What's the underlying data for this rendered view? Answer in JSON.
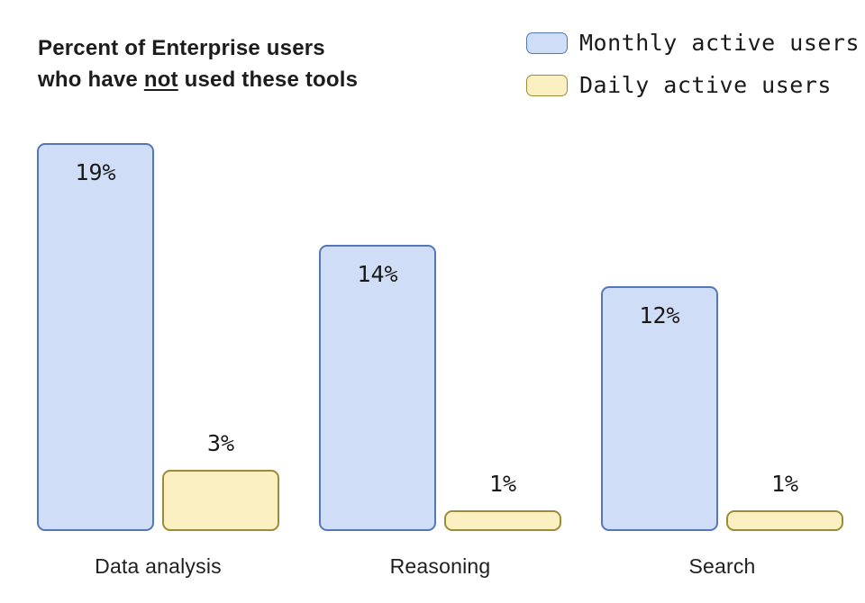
{
  "header": {
    "title_line1": "Percent of Enterprise users",
    "title_line2_pre": "who have ",
    "title_line2_word": "not",
    "title_line2_post": " used these tools"
  },
  "chart_data": {
    "type": "bar",
    "title": "Percent of Enterprise users who have not used these tools",
    "categories": [
      "Data analysis",
      "Reasoning",
      "Search"
    ],
    "series": [
      {
        "name": "Monthly active users",
        "values": [
          19,
          14,
          12
        ],
        "display": [
          "19%",
          "14%",
          "12%"
        ],
        "fill": "#d0ddf7",
        "border": "#5377b7"
      },
      {
        "name": "Daily active users",
        "values": [
          3,
          1,
          1
        ],
        "display": [
          "3%",
          "1%",
          "1%"
        ],
        "fill": "#faf0c2",
        "border": "#9d8b35"
      }
    ],
    "unit": "%",
    "ylim": [
      0,
      20
    ],
    "xlabel": "",
    "ylabel": "",
    "grid": false,
    "axes_visible": false,
    "legend_position": "top-right",
    "value_label_style": "monthly inside bar top, daily above bar"
  },
  "colors": {
    "background": "#ffffff",
    "text": "#1a1a1a"
  }
}
